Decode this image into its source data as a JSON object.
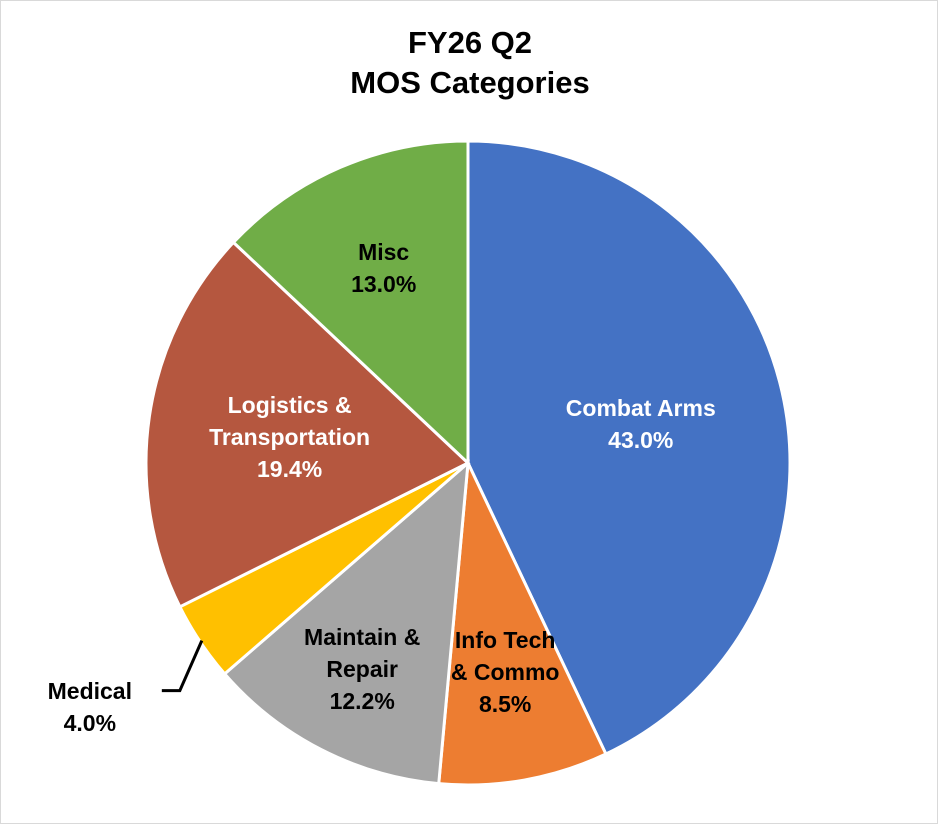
{
  "chart_data": {
    "type": "pie",
    "title": [
      "FY26 Q2",
      "MOS Categories"
    ],
    "categories": [
      "Combat Arms",
      "Info Tech & Commo",
      "Maintain & Repair",
      "Medical",
      "Logistics & Transportation",
      "Misc"
    ],
    "values": [
      43.0,
      8.5,
      12.2,
      4.0,
      19.4,
      13.0
    ],
    "value_labels": [
      "43.0%",
      "8.5%",
      "12.2%",
      "4.0%",
      "19.4%",
      "13.0%"
    ],
    "colors": [
      "#4472c4",
      "#ed7d31",
      "#a5a5a5",
      "#ffc000",
      "#b5573f",
      "#70ad47"
    ]
  }
}
